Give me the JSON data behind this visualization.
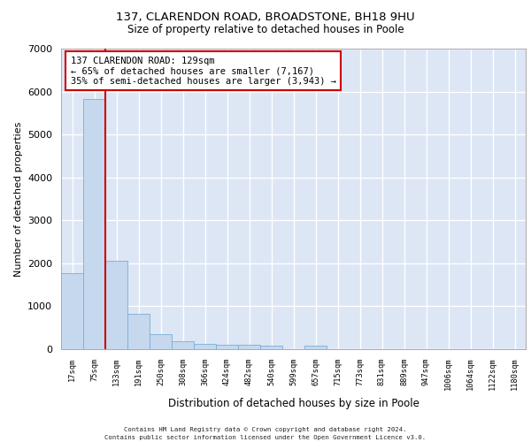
{
  "title1": "137, CLARENDON ROAD, BROADSTONE, BH18 9HU",
  "title2": "Size of property relative to detached houses in Poole",
  "xlabel": "Distribution of detached houses by size in Poole",
  "ylabel": "Number of detached properties",
  "bar_color": "#c5d8ee",
  "bar_edge_color": "#7aadd4",
  "background_color": "#dce6f5",
  "grid_color": "#ffffff",
  "vline_color": "#cc0000",
  "vline_x": 1.5,
  "annotation_text": "137 CLARENDON ROAD: 129sqm\n← 65% of detached houses are smaller (7,167)\n35% of semi-detached houses are larger (3,943) →",
  "annotation_box_color": "#cc0000",
  "categories": [
    "17sqm",
    "75sqm",
    "133sqm",
    "191sqm",
    "250sqm",
    "308sqm",
    "366sqm",
    "424sqm",
    "482sqm",
    "540sqm",
    "599sqm",
    "657sqm",
    "715sqm",
    "773sqm",
    "831sqm",
    "889sqm",
    "947sqm",
    "1006sqm",
    "1064sqm",
    "1122sqm",
    "1180sqm"
  ],
  "values": [
    1780,
    5820,
    2060,
    820,
    350,
    195,
    120,
    110,
    100,
    80,
    0,
    75,
    0,
    0,
    0,
    0,
    0,
    0,
    0,
    0,
    0
  ],
  "ylim": [
    0,
    7000
  ],
  "yticks": [
    0,
    1000,
    2000,
    3000,
    4000,
    5000,
    6000,
    7000
  ],
  "footer1": "Contains HM Land Registry data © Crown copyright and database right 2024.",
  "footer2": "Contains public sector information licensed under the Open Government Licence v3.0."
}
